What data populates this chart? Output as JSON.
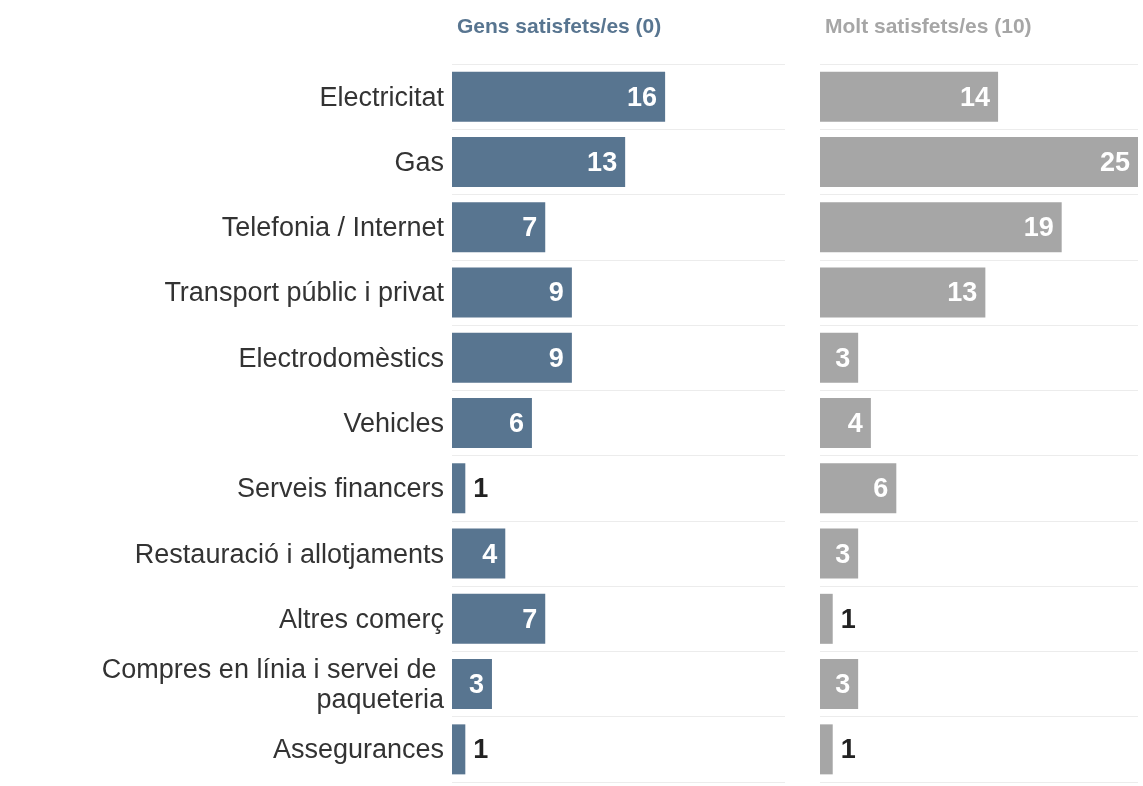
{
  "chart_data": [
    {
      "type": "bar",
      "orientation": "horizontal",
      "title": "Gens satisfets/es (0)",
      "categories": [
        "Electricitat",
        "Gas",
        "Telefonia / Internet",
        "Transport públic i privat",
        "Electrodomèstics",
        "Vehicles",
        "Serveis financers",
        "Restauració i allotjaments",
        "Altres comerç",
        "Compres en línia i servei de paqueteria",
        "Assegurances"
      ],
      "series": [
        {
          "color": "#587590",
          "values": [
            16,
            13,
            7,
            9,
            9,
            6,
            1,
            4,
            7,
            3,
            1
          ]
        }
      ],
      "data_labels": true,
      "grid": "y",
      "tick_labels": "y"
    },
    {
      "type": "bar",
      "orientation": "horizontal",
      "title": "Molt satisfets/es (10)",
      "categories": [
        "Electricitat",
        "Gas",
        "Telefonia / Internet",
        "Transport públic i privat",
        "Electrodomèstics",
        "Vehicles",
        "Serveis financers",
        "Restauració i allotjaments",
        "Altres comerç",
        "Compres en línia i servei de paqueteria",
        "Assegurances"
      ],
      "series": [
        {
          "color": "#a6a6a6",
          "values": [
            14,
            25,
            19,
            13,
            3,
            4,
            6,
            3,
            1,
            3,
            1
          ]
        }
      ],
      "data_labels": true,
      "grid": "y",
      "tick_labels": false
    }
  ]
}
